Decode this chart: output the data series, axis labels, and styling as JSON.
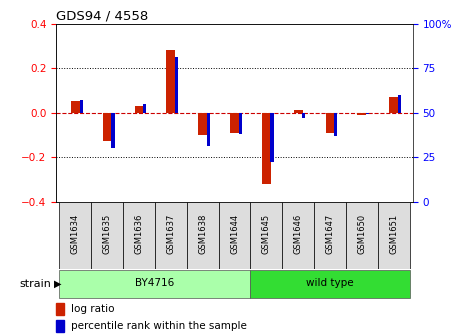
{
  "title": "GDS94 / 4558",
  "samples": [
    "GSM1634",
    "GSM1635",
    "GSM1636",
    "GSM1637",
    "GSM1638",
    "GSM1644",
    "GSM1645",
    "GSM1646",
    "GSM1647",
    "GSM1650",
    "GSM1651"
  ],
  "log_ratio": [
    0.05,
    -0.13,
    0.03,
    0.28,
    -0.1,
    -0.09,
    -0.32,
    0.01,
    -0.09,
    -0.01,
    0.07
  ],
  "percentile_rank": [
    57,
    30,
    55,
    81,
    31,
    38,
    22,
    47,
    37,
    49,
    60
  ],
  "group_by4716": {
    "label": "BY4716",
    "start": 0,
    "end": 5,
    "color": "#aaffaa"
  },
  "group_wildtype": {
    "label": "wild type",
    "start": 6,
    "end": 10,
    "color": "#33dd33"
  },
  "ylim_left": [
    -0.4,
    0.4
  ],
  "ylim_right": [
    0,
    100
  ],
  "bar_color_red": "#CC2200",
  "bar_color_blue": "#0000CC",
  "zero_line_color": "#CC0000",
  "background_color": "#ffffff",
  "plot_bg": "#ffffff",
  "strain_label": "strain",
  "legend_log_ratio": "log ratio",
  "legend_percentile": "percentile rank within the sample",
  "red_yticks": [
    -0.4,
    -0.2,
    0.0,
    0.2,
    0.4
  ],
  "blue_yticks": [
    0,
    25,
    50,
    75,
    100
  ],
  "blue_yticklabels": [
    "0",
    "25",
    "50",
    "75",
    "100%"
  ]
}
